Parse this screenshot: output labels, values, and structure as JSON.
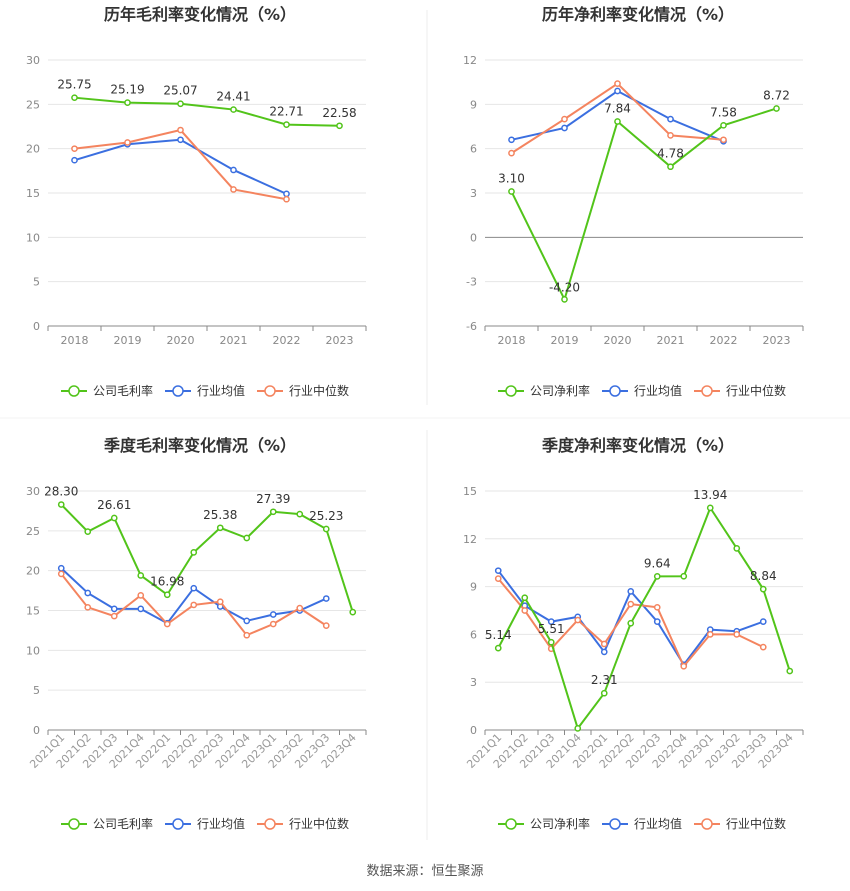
{
  "source_text": "数据来源：恒生聚源",
  "colors": {
    "company": "#52c41a",
    "avg": "#3b6fe0",
    "median": "#f4845f",
    "axis": "#666666",
    "grid": "#e6e6e6",
    "title": "#333333"
  },
  "chart_data": [
    {
      "type": "line",
      "title": "历年毛利率变化情况（%）",
      "categories": [
        "2018",
        "2019",
        "2020",
        "2021",
        "2022",
        "2023"
      ],
      "ylim": [
        0,
        30
      ],
      "yticks": [
        0,
        5,
        10,
        15,
        20,
        25,
        30
      ],
      "grid": true,
      "legend_position": "bottom",
      "series": [
        {
          "name": "公司毛利率",
          "key": "company",
          "values": [
            25.75,
            25.19,
            25.07,
            24.41,
            22.71,
            22.58
          ],
          "labels": [
            "25.75",
            "25.19",
            "25.07",
            "24.41",
            "22.71",
            "22.58"
          ]
        },
        {
          "name": "行业均值",
          "key": "avg",
          "values": [
            18.7,
            20.5,
            21.0,
            17.6,
            14.9,
            null
          ]
        },
        {
          "name": "行业中位数",
          "key": "median",
          "values": [
            20.0,
            20.7,
            22.1,
            15.4,
            14.3,
            null
          ]
        }
      ]
    },
    {
      "type": "line",
      "title": "历年净利率变化情况（%）",
      "categories": [
        "2018",
        "2019",
        "2020",
        "2021",
        "2022",
        "2023"
      ],
      "ylim": [
        -6,
        12
      ],
      "yticks": [
        -6,
        -3,
        0,
        3,
        6,
        9,
        12
      ],
      "grid": true,
      "legend_position": "bottom",
      "series": [
        {
          "name": "公司净利率",
          "key": "company",
          "values": [
            3.1,
            -4.2,
            7.84,
            4.78,
            7.58,
            8.72
          ],
          "labels": [
            "3.10",
            "-4.20",
            "7.84",
            "4.78",
            "7.58",
            "8.72"
          ]
        },
        {
          "name": "行业均值",
          "key": "avg",
          "values": [
            6.6,
            7.4,
            9.9,
            8.0,
            6.5,
            null
          ]
        },
        {
          "name": "行业中位数",
          "key": "median",
          "values": [
            5.7,
            8.0,
            10.4,
            6.9,
            6.6,
            null
          ]
        }
      ]
    },
    {
      "type": "line",
      "title": "季度毛利率变化情况（%）",
      "categories": [
        "2021Q1",
        "2021Q2",
        "2021Q3",
        "2021Q4",
        "2022Q1",
        "2022Q2",
        "2022Q3",
        "2022Q4",
        "2023Q1",
        "2023Q2",
        "2023Q3",
        "2023Q4"
      ],
      "ylim": [
        0,
        30
      ],
      "yticks": [
        0,
        5,
        10,
        15,
        20,
        25,
        30
      ],
      "grid": true,
      "legend_position": "bottom",
      "series": [
        {
          "name": "公司毛利率",
          "key": "company",
          "values": [
            28.3,
            24.9,
            26.61,
            19.4,
            16.98,
            22.3,
            25.38,
            24.1,
            27.39,
            27.1,
            25.23,
            14.8
          ],
          "labels": [
            "28.30",
            "",
            "26.61",
            "",
            "16.98",
            "",
            "25.38",
            "",
            "27.39",
            "",
            "25.23",
            ""
          ]
        },
        {
          "name": "行业均值",
          "key": "avg",
          "values": [
            20.3,
            17.2,
            15.2,
            15.2,
            13.4,
            17.8,
            15.5,
            13.7,
            14.5,
            15.0,
            16.5,
            null
          ]
        },
        {
          "name": "行业中位数",
          "key": "median",
          "values": [
            19.6,
            15.4,
            14.3,
            16.9,
            13.3,
            15.7,
            16.1,
            11.9,
            13.3,
            15.3,
            13.1,
            null
          ]
        }
      ]
    },
    {
      "type": "line",
      "title": "季度净利率变化情况（%）",
      "categories": [
        "2021Q1",
        "2021Q2",
        "2021Q3",
        "2021Q4",
        "2022Q1",
        "2022Q2",
        "2022Q3",
        "2022Q4",
        "2023Q1",
        "2023Q2",
        "2023Q3",
        "2023Q4"
      ],
      "ylim": [
        0,
        15
      ],
      "yticks": [
        0,
        3,
        6,
        9,
        12,
        15
      ],
      "grid": true,
      "legend_position": "bottom",
      "series": [
        {
          "name": "公司净利率",
          "key": "company",
          "values": [
            5.14,
            8.3,
            5.51,
            0.1,
            2.31,
            6.7,
            9.64,
            9.65,
            13.94,
            11.4,
            8.84,
            3.7
          ],
          "labels": [
            "5.14",
            "",
            "5.51",
            "",
            "2.31",
            "",
            "9.64",
            "",
            "13.94",
            "",
            "8.84",
            ""
          ]
        },
        {
          "name": "行业均值",
          "key": "avg",
          "values": [
            10.0,
            7.8,
            6.8,
            7.1,
            4.9,
            8.7,
            6.8,
            4.1,
            6.3,
            6.2,
            6.8,
            null
          ]
        },
        {
          "name": "行业中位数",
          "key": "median",
          "values": [
            9.5,
            7.5,
            5.1,
            6.9,
            5.4,
            7.9,
            7.7,
            4.0,
            6.0,
            6.0,
            5.2,
            null
          ]
        }
      ]
    }
  ]
}
